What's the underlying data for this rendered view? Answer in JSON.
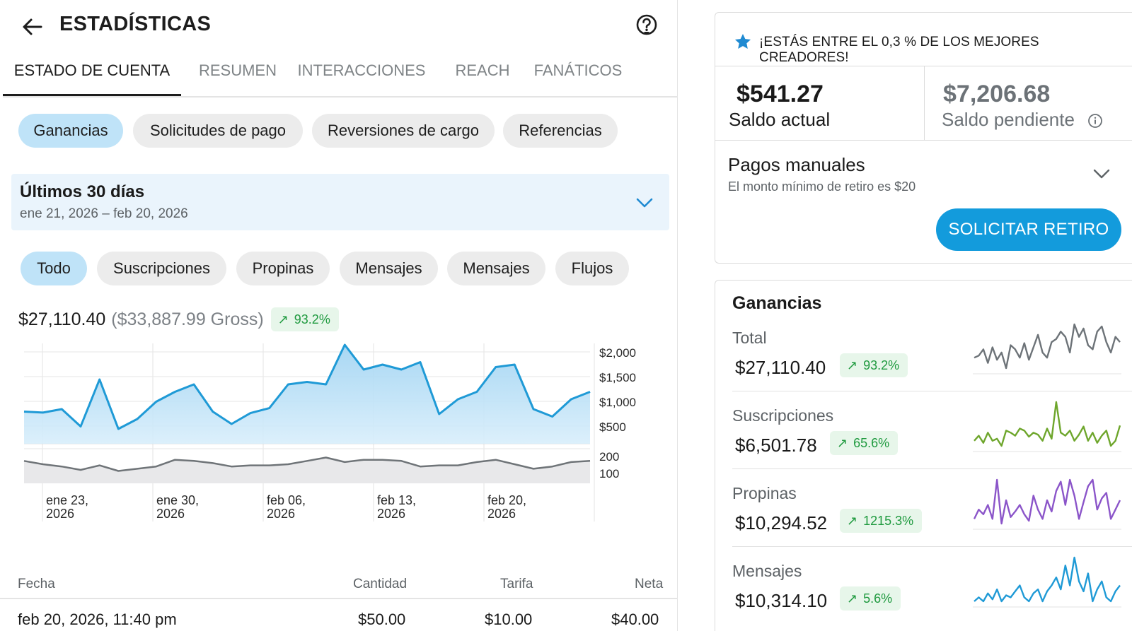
{
  "header": {
    "title": "ESTADÍSTICAS"
  },
  "tabs": [
    {
      "label": "ESTADO DE CUENTA",
      "active": true
    },
    {
      "label": "RESUMEN",
      "active": false
    },
    {
      "label": "INTERACCIONES",
      "active": false
    },
    {
      "label": "REACH",
      "active": false
    },
    {
      "label": "FANÁTICOS",
      "active": false
    }
  ],
  "statement_chips": [
    {
      "label": "Ganancias",
      "active": true
    },
    {
      "label": "Solicitudes de pago",
      "active": false
    },
    {
      "label": "Reversiones de cargo",
      "active": false
    },
    {
      "label": "Referencias",
      "active": false
    }
  ],
  "date_range": {
    "title": "Últimos 30 días",
    "range": "ene 21, 2026 – feb 20, 2026"
  },
  "type_chips": [
    {
      "label": "Todo",
      "active": true
    },
    {
      "label": "Suscripciones",
      "active": false
    },
    {
      "label": "Propinas",
      "active": false
    },
    {
      "label": "Mensajes",
      "active": false
    },
    {
      "label": "Mensajes",
      "active": false
    },
    {
      "label": "Flujos",
      "active": false
    }
  ],
  "summary": {
    "net": "$27,110.40",
    "gross": "($33,887.99 Gross)",
    "change": "93.2%"
  },
  "colors": {
    "accent": "#1f9ad6",
    "button": "#139bdc",
    "chip_active": "#bfe3f8",
    "positive": "#1f9a3f",
    "star": "#1f8ad2"
  },
  "chart_data": {
    "type": "area",
    "x": [
      "ene 21",
      "ene 22",
      "ene 23",
      "ene 24",
      "ene 25",
      "ene 26",
      "ene 27",
      "ene 28",
      "ene 29",
      "ene 30",
      "ene 31",
      "feb 01",
      "feb 02",
      "feb 03",
      "feb 04",
      "feb 05",
      "feb 06",
      "feb 07",
      "feb 08",
      "feb 09",
      "feb 10",
      "feb 11",
      "feb 12",
      "feb 13",
      "feb 14",
      "feb 15",
      "feb 16",
      "feb 17",
      "feb 18",
      "feb 19",
      "feb 20"
    ],
    "xticks": [
      "ene 23, 2026",
      "ene 30, 2026",
      "feb 06, 2026",
      "feb 13, 2026",
      "feb 20, 2026"
    ],
    "main": {
      "yticks": [
        "$2,000",
        "$1,500",
        "$1,000",
        "$500"
      ],
      "ylim": [
        0,
        2000
      ],
      "values": [
        650,
        630,
        700,
        350,
        1300,
        300,
        500,
        850,
        1050,
        1200,
        650,
        400,
        620,
        720,
        1200,
        1250,
        1200,
        2000,
        1500,
        1600,
        1500,
        1650,
        600,
        900,
        1050,
        1550,
        1600,
        700,
        550,
        900,
        1050
      ]
    },
    "secondary": {
      "yticks": [
        "200",
        "100"
      ],
      "ylim": [
        0,
        300
      ],
      "values": [
        200,
        170,
        150,
        120,
        160,
        110,
        130,
        150,
        210,
        200,
        180,
        150,
        160,
        160,
        170,
        200,
        230,
        190,
        210,
        210,
        200,
        150,
        160,
        160,
        190,
        210,
        170,
        130,
        150,
        190,
        200
      ]
    }
  },
  "table": {
    "headers": {
      "date": "Fecha",
      "amount": "Cantidad",
      "fee": "Tarifa",
      "net": "Neta"
    },
    "rows": [
      {
        "date": "feb 20, 2026, 11:40 pm",
        "amount": "$50.00",
        "fee": "$10.00",
        "net": "$40.00"
      }
    ]
  },
  "creator_banner": "¡ESTÁS ENTRE EL 0,3 % DE LOS MEJORES CREADORES!",
  "balance": {
    "current_amount": "$541.27",
    "current_label": "Saldo actual",
    "pending_amount": "$7,206.68",
    "pending_label": "Saldo pendiente"
  },
  "manual_payouts": {
    "title": "Pagos manuales",
    "subtitle": "El monto mínimo de retiro es $20",
    "button": "SOLICITAR RETIRO"
  },
  "earnings": {
    "title": "Ganancias",
    "metrics": [
      {
        "name": "Total",
        "value": "$27,110.40",
        "change": "93.2%",
        "color": "#6d7378",
        "spark": [
          30,
          32,
          38,
          25,
          40,
          28,
          35,
          20,
          42,
          38,
          30,
          44,
          28,
          40,
          52,
          35,
          30,
          45,
          48,
          55,
          50,
          35,
          62,
          50,
          58,
          42,
          38,
          55,
          60,
          45,
          35,
          50,
          45
        ]
      },
      {
        "name": "Suscripciones",
        "value": "$6,501.78",
        "change": "65.6%",
        "color": "#6ea62c",
        "spark": [
          30,
          35,
          28,
          38,
          30,
          32,
          25,
          40,
          38,
          35,
          42,
          40,
          34,
          38,
          36,
          30,
          42,
          32,
          68,
          38,
          35,
          40,
          30,
          36,
          44,
          30,
          38,
          28,
          35,
          40,
          25,
          30,
          45
        ]
      },
      {
        "name": "Propinas",
        "value": "$10,294.52",
        "change": "1215.3%",
        "color": "#8b55c9",
        "spark": [
          20,
          30,
          25,
          35,
          20,
          62,
          15,
          40,
          22,
          28,
          35,
          25,
          18,
          45,
          30,
          20,
          40,
          28,
          50,
          60,
          35,
          62,
          45,
          20,
          38,
          55,
          62,
          30,
          42,
          48,
          20,
          30,
          40
        ]
      },
      {
        "name": "Mensajes",
        "value": "$10,314.10",
        "change": "5.6%",
        "color": "#1f9ad6",
        "spark": [
          30,
          32,
          30,
          34,
          31,
          36,
          30,
          33,
          32,
          35,
          38,
          32,
          30,
          34,
          36,
          30,
          35,
          38,
          42,
          36,
          48,
          38,
          52,
          40,
          35,
          44,
          30,
          36,
          40,
          32,
          30,
          35,
          38
        ]
      }
    ]
  }
}
